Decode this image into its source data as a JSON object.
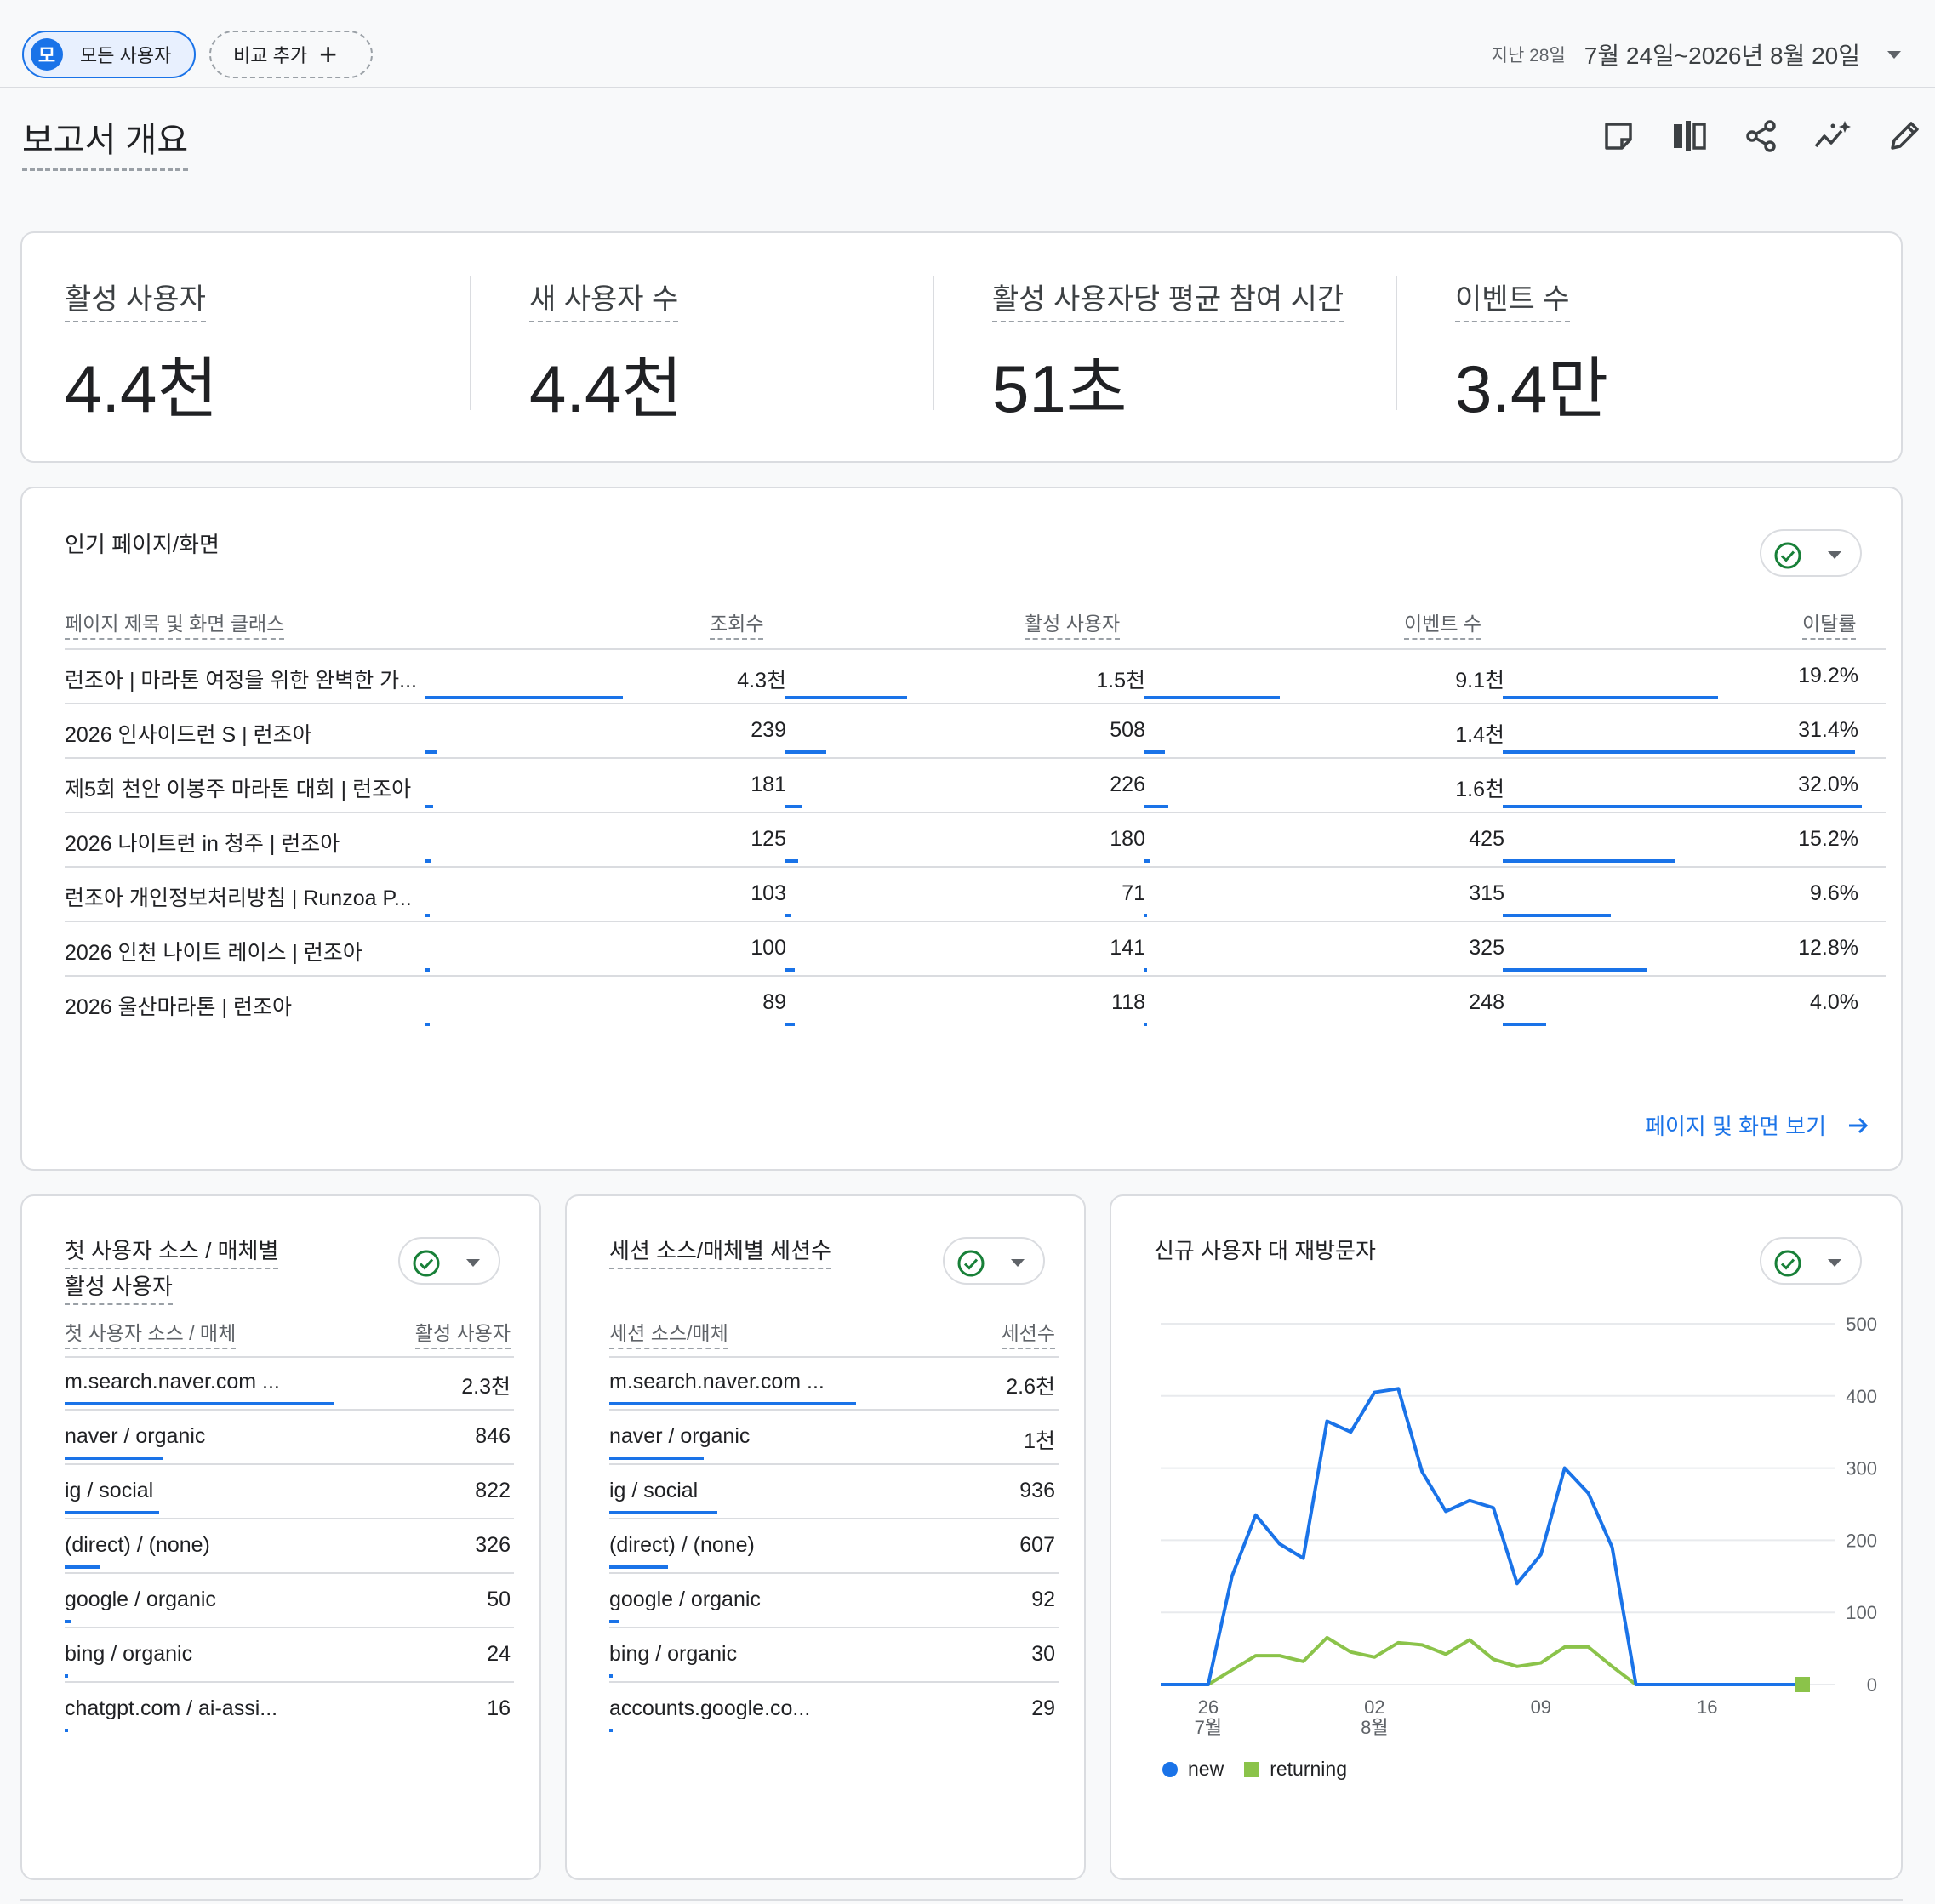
{
  "topbar": {
    "segment_avatar": "모",
    "segment_label": "모든 사용자",
    "add_compare": "비교 추가",
    "date_last": "지난 28일",
    "date_range": "7월 24일~2026년 8월 20일"
  },
  "page_title": "보고서 개요",
  "toolbar": [
    "note-icon",
    "compare-columns-icon",
    "share-icon",
    "insights-icon",
    "edit-icon"
  ],
  "metrics": [
    {
      "label": "활성 사용자",
      "value": "4.4천"
    },
    {
      "label": "새 사용자 수",
      "value": "4.4천"
    },
    {
      "label": "활성 사용자당 평균 참여 시간",
      "value": "51초"
    },
    {
      "label": "이벤트 수",
      "value": "3.4만"
    }
  ],
  "pages": {
    "title": "인기 페이지/화면",
    "headers": [
      "페이지 제목 및 화면 클래스",
      "조회수",
      "활성 사용자",
      "이벤트 수",
      "이탈률"
    ],
    "rows": [
      {
        "title": "런조아 | 마라톤 여정을 위한 완벽한 가...",
        "views": "4.3천",
        "views_f": 1.0,
        "users": "1.5천",
        "users_f": 0.35,
        "events": "9.1천",
        "events_f": 0.39,
        "bounce": "19.2%",
        "bounce_f": 0.6
      },
      {
        "title": "2026 인사이드런 S | 런조아",
        "views": "239",
        "views_f": 0.06,
        "users": "508",
        "users_f": 0.12,
        "events": "1.4천",
        "events_f": 0.06,
        "bounce": "31.4%",
        "bounce_f": 0.98
      },
      {
        "title": "제5회 천안 이봉주 마라톤 대회 | 런조아",
        "views": "181",
        "views_f": 0.04,
        "users": "226",
        "users_f": 0.05,
        "events": "1.6천",
        "events_f": 0.07,
        "bounce": "32.0%",
        "bounce_f": 1.0
      },
      {
        "title": "2026 나이트런 in 청주 | 런조아",
        "views": "125",
        "views_f": 0.03,
        "users": "180",
        "users_f": 0.04,
        "events": "425",
        "events_f": 0.02,
        "bounce": "15.2%",
        "bounce_f": 0.48
      },
      {
        "title": "런조아 개인정보처리방침 | Runzoa P...",
        "views": "103",
        "views_f": 0.02,
        "users": "71",
        "users_f": 0.02,
        "events": "315",
        "events_f": 0.01,
        "bounce": "9.6%",
        "bounce_f": 0.3
      },
      {
        "title": "2026 인천 나이트 레이스 | 런조아",
        "views": "100",
        "views_f": 0.02,
        "users": "141",
        "users_f": 0.03,
        "events": "325",
        "events_f": 0.01,
        "bounce": "12.8%",
        "bounce_f": 0.4
      },
      {
        "title": "2026 울산마라톤 | 런조아",
        "views": "89",
        "views_f": 0.02,
        "users": "118",
        "users_f": 0.03,
        "events": "248",
        "events_f": 0.01,
        "bounce": "4.0%",
        "bounce_f": 0.12
      }
    ],
    "view_link": "페이지 및 화면 보기"
  },
  "first_source": {
    "title_line1": "첫 사용자 소스 / 매체별",
    "title_line2": "활성 사용자",
    "headers": [
      "첫 사용자 소스 / 매체",
      "활성 사용자"
    ],
    "rows": [
      {
        "label": "m.search.naver.com ...",
        "value": "2.3천",
        "f": 0.6
      },
      {
        "label": "naver / organic",
        "value": "846",
        "f": 0.22
      },
      {
        "label": "ig / social",
        "value": "822",
        "f": 0.21
      },
      {
        "label": "(direct) / (none)",
        "value": "326",
        "f": 0.08
      },
      {
        "label": "google / organic",
        "value": "50",
        "f": 0.013
      },
      {
        "label": "bing / organic",
        "value": "24",
        "f": 0.008
      },
      {
        "label": "chatgpt.com / ai-assi...",
        "value": "16",
        "f": 0.005
      }
    ]
  },
  "session_source": {
    "title": "세션 소스/매체별 세션수",
    "headers": [
      "세션 소스/매체",
      "세션수"
    ],
    "rows": [
      {
        "label": "m.search.naver.com ...",
        "value": "2.6천",
        "f": 0.55
      },
      {
        "label": "naver / organic",
        "value": "1천",
        "f": 0.21
      },
      {
        "label": "ig / social",
        "value": "936",
        "f": 0.24
      },
      {
        "label": "(direct) / (none)",
        "value": "607",
        "f": 0.13
      },
      {
        "label": "google / organic",
        "value": "92",
        "f": 0.02
      },
      {
        "label": "bing / organic",
        "value": "30",
        "f": 0.007
      },
      {
        "label": "accounts.google.co...",
        "value": "29",
        "f": 0.006
      }
    ]
  },
  "chart_data": {
    "type": "line",
    "title": "신규 사용자 대 재방문자",
    "x": [
      "07-24",
      "07-25",
      "07-26",
      "07-27",
      "07-28",
      "07-29",
      "07-30",
      "07-31",
      "08-01",
      "08-02",
      "08-03",
      "08-04",
      "08-05",
      "08-06",
      "08-07",
      "08-08",
      "08-09",
      "08-10",
      "08-11",
      "08-12",
      "08-13",
      "08-14",
      "08-15",
      "08-16",
      "08-17",
      "08-18",
      "08-19",
      "08-20"
    ],
    "x_ticks": [
      {
        "x": "07-26",
        "label": "26",
        "sub": "7월"
      },
      {
        "x": "08-02",
        "label": "02",
        "sub": "8월"
      },
      {
        "x": "08-09",
        "label": "09",
        "sub": ""
      },
      {
        "x": "08-16",
        "label": "16",
        "sub": ""
      }
    ],
    "y_ticks": [
      "0",
      "100",
      "200",
      "300",
      "400",
      "500"
    ],
    "ylim": [
      0,
      500
    ],
    "series": [
      {
        "name": "new",
        "color": "#1a73e8",
        "values": [
          0,
          0,
          0,
          150,
          235,
          195,
          175,
          365,
          350,
          405,
          410,
          295,
          240,
          255,
          245,
          140,
          180,
          300,
          265,
          190,
          0,
          0,
          0,
          0,
          0,
          0,
          0,
          0
        ]
      },
      {
        "name": "returning",
        "color": "#8bc34a",
        "values": [
          0,
          0,
          0,
          20,
          40,
          40,
          32,
          65,
          45,
          38,
          58,
          55,
          42,
          62,
          35,
          25,
          30,
          52,
          52,
          25,
          0,
          0,
          0,
          0,
          0,
          0,
          0,
          0
        ]
      }
    ],
    "legend": "bottom-left"
  }
}
